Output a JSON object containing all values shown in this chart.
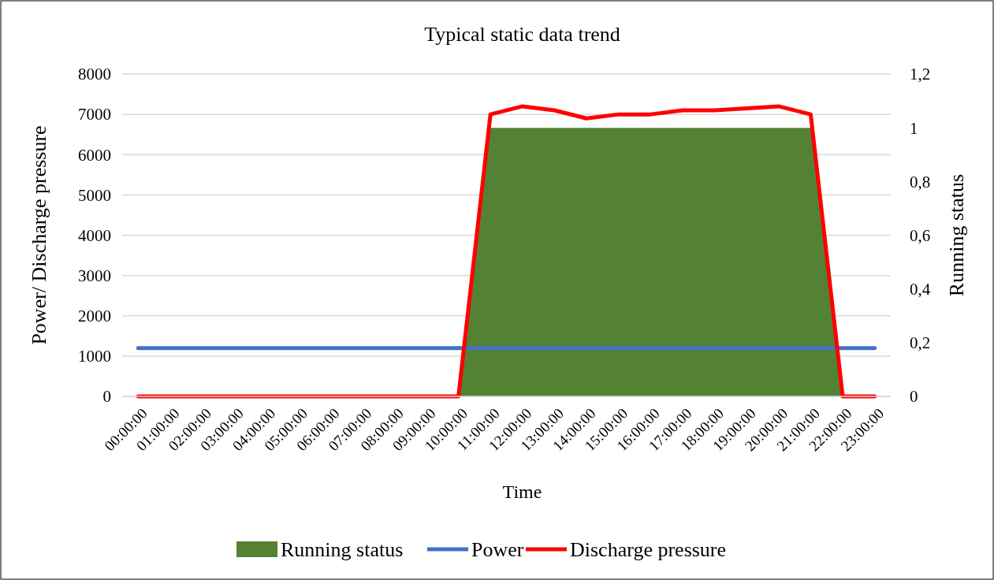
{
  "chart_data": {
    "type": "line",
    "title": "Typical static data trend",
    "xlabel": "Time",
    "ylabel": "Power/ Discharge pressure",
    "y2label": "Running status",
    "categories": [
      "00:00:00",
      "01:00:00",
      "02:00:00",
      "03:00:00",
      "04:00:00",
      "05:00:00",
      "06:00:00",
      "07:00:00",
      "08:00:00",
      "09:00:00",
      "10:00:00",
      "11:00:00",
      "12:00:00",
      "13:00:00",
      "14:00:00",
      "15:00:00",
      "16:00:00",
      "17:00:00",
      "18:00:00",
      "19:00:00",
      "20:00:00",
      "21:00:00",
      "22:00:00",
      "23:00:00"
    ],
    "series": [
      {
        "name": "Running status",
        "type": "area",
        "axis": "y2",
        "color": "#548235",
        "values": [
          0,
          0,
          0,
          0,
          0,
          0,
          0,
          0,
          0,
          0,
          0,
          1,
          1,
          1,
          1,
          1,
          1,
          1,
          1,
          1,
          1,
          1,
          0,
          0
        ]
      },
      {
        "name": "Power",
        "color": "#4472c4",
        "values": [
          1200,
          1200,
          1200,
          1200,
          1200,
          1200,
          1200,
          1200,
          1200,
          1200,
          1200,
          1200,
          1200,
          1200,
          1200,
          1200,
          1200,
          1200,
          1200,
          1200,
          1200,
          1200,
          1200,
          1200
        ]
      },
      {
        "name": "Discharge pressure",
        "color": "#ff0000",
        "values": [
          0,
          0,
          0,
          0,
          0,
          0,
          0,
          0,
          0,
          0,
          0,
          7000,
          7200,
          7100,
          6900,
          7000,
          7000,
          7100,
          7100,
          7150,
          7200,
          7000,
          0,
          0
        ]
      }
    ],
    "ylim": [
      0,
      8000
    ],
    "yticks": [
      0,
      1000,
      2000,
      3000,
      4000,
      5000,
      6000,
      7000,
      8000
    ],
    "y2lim": [
      0,
      1.2
    ],
    "y2ticks": [
      0,
      {
        "value": 0.2,
        "label": "0,2"
      },
      {
        "value": 0.4,
        "label": "0,4"
      },
      {
        "value": 0.6,
        "label": "0,6"
      },
      {
        "value": 0.8,
        "label": "0,8"
      },
      1,
      {
        "value": 1.2,
        "label": "1,2"
      }
    ],
    "grid": "y",
    "legend": "bottom",
    "marker": "none",
    "line_style": "solid"
  }
}
